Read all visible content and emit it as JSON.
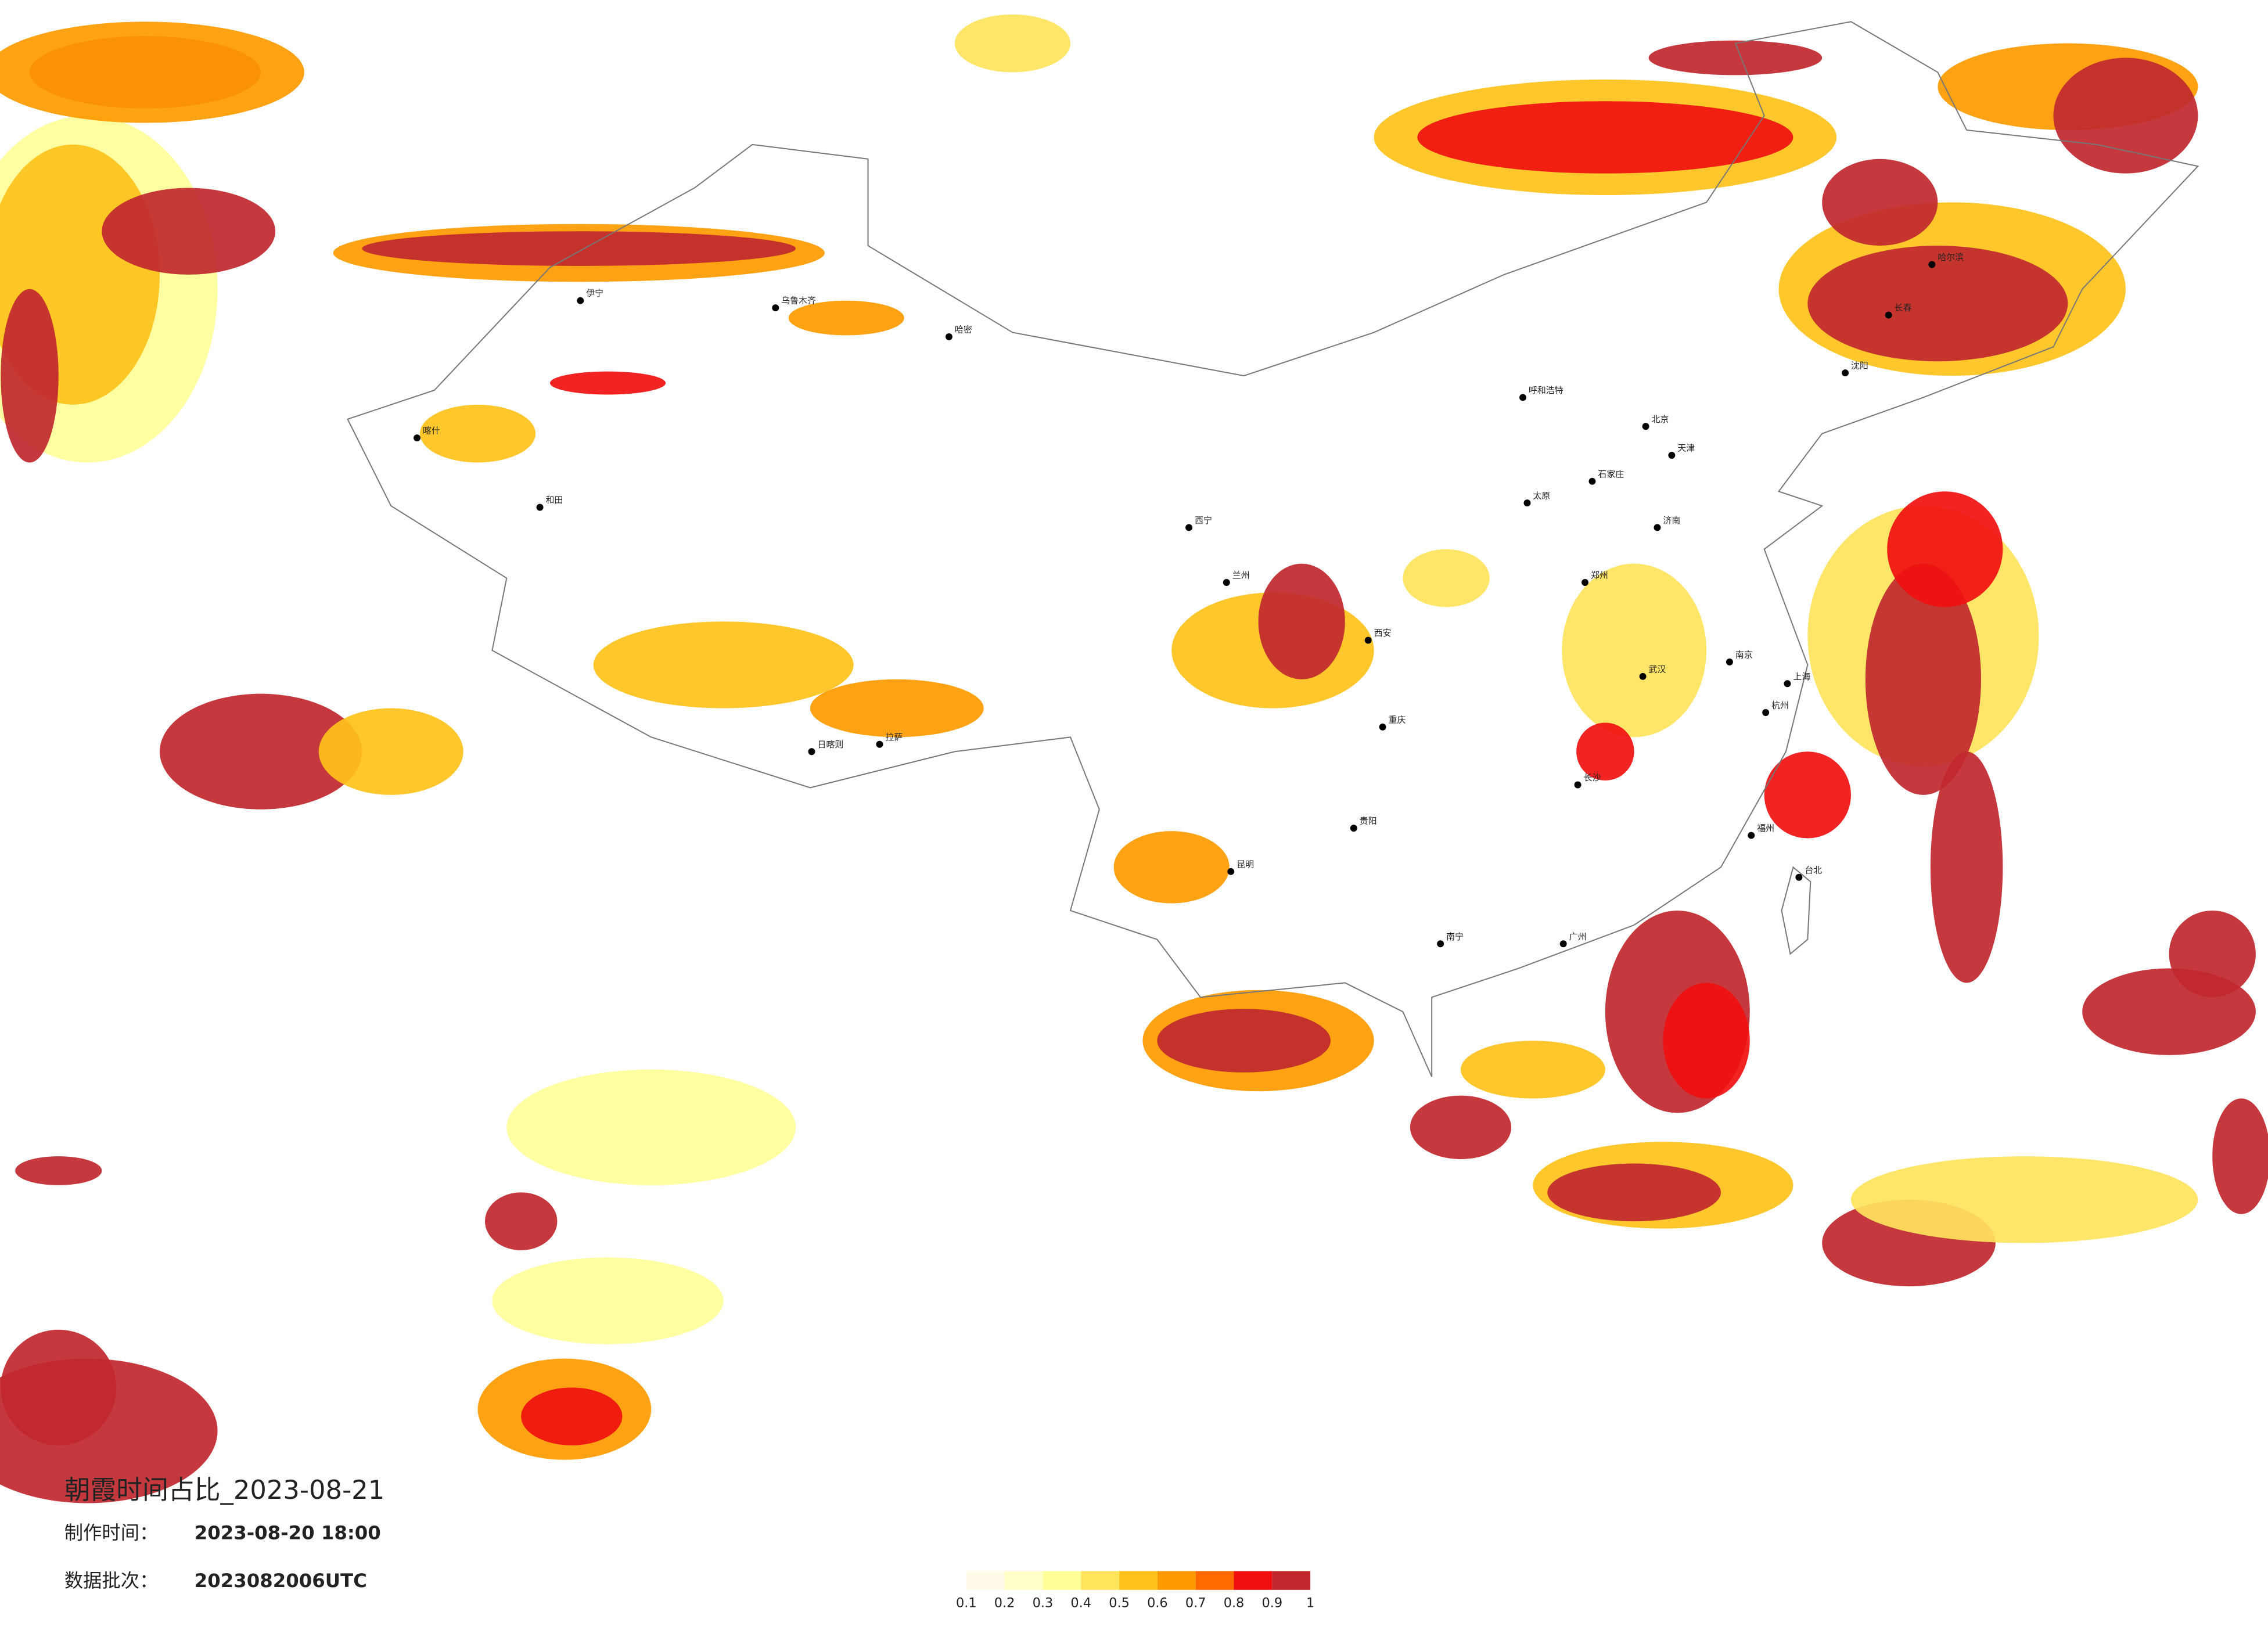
{
  "title": "朝霞时间占比_2023-08-21",
  "production": {
    "label": "制作时间：",
    "value": "2023-08-20 18:00"
  },
  "batch": {
    "label": "数据批次：",
    "value": "2023082006UTC"
  },
  "legend": {
    "bins": [
      0.1,
      0.2,
      0.3,
      0.4,
      0.5,
      0.6,
      0.7,
      0.8,
      0.9,
      1
    ],
    "colors": [
      "#fffbe8",
      "#ffffc8",
      "#ffff99",
      "#ffe45c",
      "#ffc21a",
      "#ff9a00",
      "#ff6a00",
      "#f01010",
      "#c0282e"
    ]
  },
  "cities": [
    "乌鲁木齐",
    "伊宁",
    "喀什",
    "和田",
    "哈密",
    "拉萨",
    "日喀则",
    "西宁",
    "兰州",
    "呼和浩特",
    "北京",
    "天津",
    "石家庄",
    "太原",
    "西安",
    "郑州",
    "武汉",
    "南京",
    "上海",
    "杭州",
    "长沙",
    "南宁",
    "广州",
    "福州",
    "昆明",
    "贵阳",
    "重庆",
    "哈尔滨",
    "长春",
    "沈阳",
    "济南",
    "台北"
  ]
}
